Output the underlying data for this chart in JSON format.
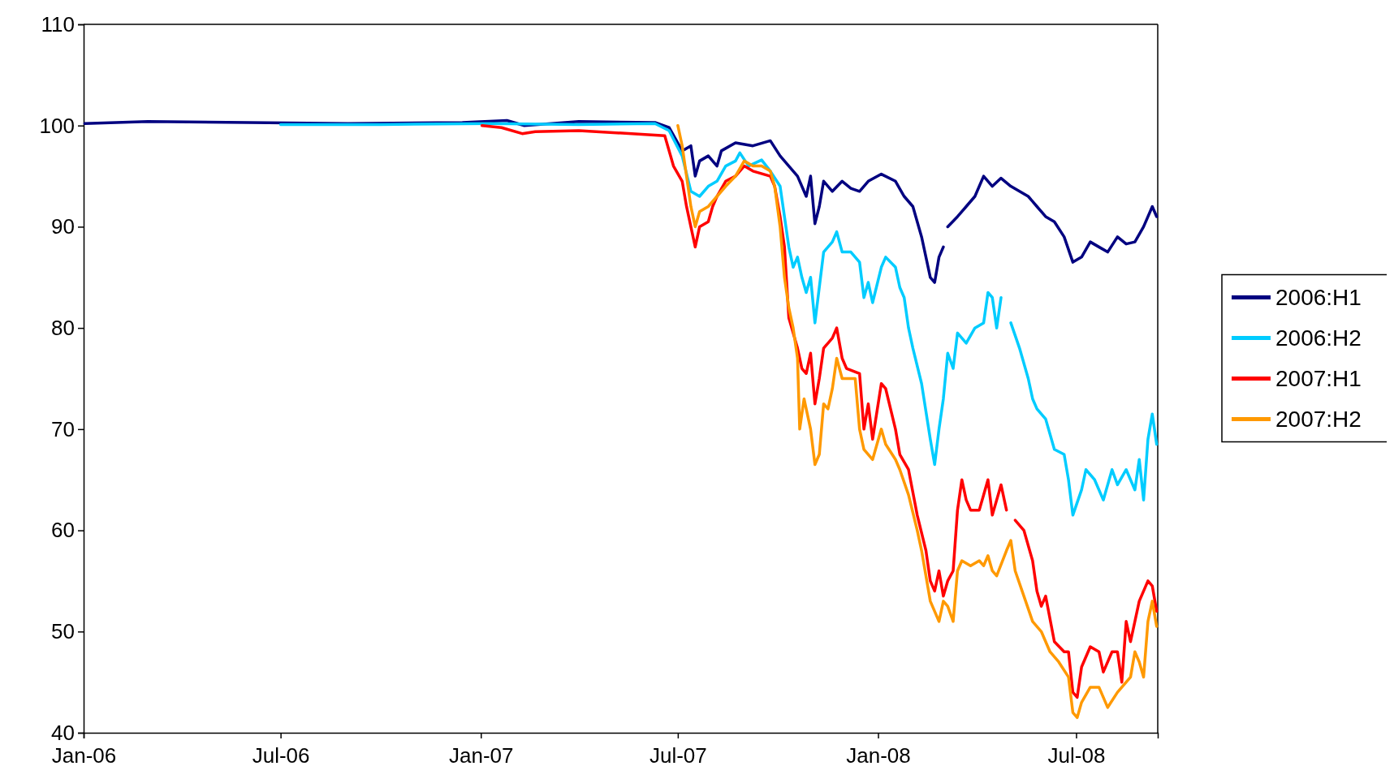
{
  "chart_data": {
    "type": "line",
    "xlim": [
      "2006-01-01",
      "2008-09-14"
    ],
    "ylim": [
      40,
      110
    ],
    "yticks": [
      40,
      50,
      60,
      70,
      80,
      90,
      100,
      110
    ],
    "xticks": [
      {
        "value": "2006-01-01",
        "label": "Jan-06"
      },
      {
        "value": "2006-07-01",
        "label": "Jul-06"
      },
      {
        "value": "2007-01-01",
        "label": "Jan-07"
      },
      {
        "value": "2007-07-01",
        "label": "Jul-07"
      },
      {
        "value": "2008-01-01",
        "label": "Jan-08"
      },
      {
        "value": "2008-07-01",
        "label": "Jul-08"
      }
    ],
    "grid": false,
    "legend": "right",
    "marker": "none",
    "line_style": "solid",
    "series": [
      {
        "name": "2006:H1",
        "color": "#000080",
        "x": [
          "2006-01-02",
          "2006-03-01",
          "2006-06-01",
          "2006-09-01",
          "2006-12-15",
          "2007-01-25",
          "2007-02-10",
          "2007-04-01",
          "2007-06-10",
          "2007-06-23",
          "2007-07-05",
          "2007-07-13",
          "2007-07-17",
          "2007-07-21",
          "2007-07-29",
          "2007-08-06",
          "2007-08-10",
          "2007-08-23",
          "2007-09-08",
          "2007-09-24",
          "2007-10-03",
          "2007-10-19",
          "2007-10-27",
          "2007-10-31",
          "2007-11-04",
          "2007-11-08",
          "2007-11-12",
          "2007-11-20",
          "2007-11-29",
          "2007-12-07",
          "2007-12-15",
          "2007-12-23",
          "2008-01-04",
          "2008-01-17",
          "2008-01-25",
          "2008-02-02",
          "2008-02-10",
          "2008-02-18",
          "2008-02-22",
          "2008-02-26",
          "2008-03-01",
          "2008-03-03",
          "2008-03-05",
          "2008-03-14",
          "2008-03-22",
          "2008-03-30",
          "2008-04-07",
          "2008-04-15",
          "2008-04-23",
          "2008-05-02",
          "2008-05-10",
          "2008-05-18",
          "2008-05-26",
          "2008-06-03",
          "2008-06-11",
          "2008-06-20",
          "2008-06-28",
          "2008-07-06",
          "2008-07-14",
          "2008-07-22",
          "2008-07-30",
          "2008-08-08",
          "2008-08-16",
          "2008-08-24",
          "2008-09-01",
          "2008-09-09",
          "2008-09-13"
        ],
        "values": [
          100.2,
          100.4,
          100.3,
          100.2,
          100.3,
          100.5,
          100,
          100.4,
          100.3,
          99.8,
          97.5,
          98,
          95,
          96.5,
          97,
          96,
          97.5,
          98.3,
          98,
          98.5,
          97,
          95,
          93,
          95,
          90.3,
          92,
          94.5,
          93.5,
          94.5,
          93.8,
          93.5,
          94.5,
          95.2,
          94.5,
          93,
          92,
          89,
          85,
          84.5,
          87,
          88,
          null,
          90,
          91,
          92,
          93,
          95,
          94,
          94.8,
          94,
          93.5,
          93,
          92,
          91,
          90.5,
          89,
          86.5,
          87,
          88.5,
          88,
          87.5,
          89,
          88.3,
          88.5,
          90,
          92,
          91
        ]
      },
      {
        "name": "2006:H2",
        "color": "#00ccff",
        "x": [
          "2006-07-01",
          "2006-10-01",
          "2007-01-10",
          "2007-04-01",
          "2007-06-10",
          "2007-06-23",
          "2007-07-05",
          "2007-07-13",
          "2007-07-21",
          "2007-07-29",
          "2007-08-06",
          "2007-08-14",
          "2007-08-23",
          "2007-08-27",
          "2007-09-04",
          "2007-09-16",
          "2007-09-24",
          "2007-10-03",
          "2007-10-11",
          "2007-10-15",
          "2007-10-19",
          "2007-10-23",
          "2007-10-27",
          "2007-10-31",
          "2007-11-04",
          "2007-11-08",
          "2007-11-12",
          "2007-11-20",
          "2007-11-24",
          "2007-11-29",
          "2007-12-07",
          "2007-12-15",
          "2007-12-19",
          "2007-12-23",
          "2007-12-27",
          "2008-01-04",
          "2008-01-08",
          "2008-01-17",
          "2008-01-21",
          "2008-01-25",
          "2008-01-29",
          "2008-02-02",
          "2008-02-10",
          "2008-02-18",
          "2008-02-22",
          "2008-02-26",
          "2008-03-01",
          "2008-03-05",
          "2008-03-10",
          "2008-03-14",
          "2008-03-22",
          "2008-03-30",
          "2008-04-07",
          "2008-04-11",
          "2008-04-15",
          "2008-04-19",
          "2008-04-23",
          "2008-04-26",
          "2008-05-02",
          "2008-05-10",
          "2008-05-18",
          "2008-05-22",
          "2008-05-26",
          "2008-06-03",
          "2008-06-11",
          "2008-06-20",
          "2008-06-24",
          "2008-06-28",
          "2008-07-06",
          "2008-07-10",
          "2008-07-18",
          "2008-07-26",
          "2008-08-03",
          "2008-08-08",
          "2008-08-16",
          "2008-08-24",
          "2008-08-28",
          "2008-09-01",
          "2008-09-05",
          "2008-09-09",
          "2008-09-13"
        ],
        "values": [
          100.1,
          100.1,
          100.2,
          100.1,
          100.2,
          99.5,
          97,
          93.5,
          93,
          94,
          94.5,
          96,
          96.5,
          97.3,
          96,
          96.6,
          95.5,
          94,
          88,
          86,
          87,
          85,
          83.5,
          85,
          80.5,
          84,
          87.5,
          88.5,
          89.5,
          87.5,
          87.5,
          86.5,
          83,
          84.5,
          82.5,
          86,
          87,
          86,
          84,
          83,
          80,
          78,
          74.5,
          69,
          66.5,
          70,
          73,
          77.5,
          76,
          79.5,
          78.5,
          80,
          80.5,
          83.5,
          83,
          80,
          83,
          null,
          80.5,
          78,
          75,
          73,
          72,
          71,
          68,
          67.5,
          65,
          61.5,
          64,
          66,
          65,
          63,
          66,
          64.5,
          66,
          64,
          67,
          63,
          69,
          71.5,
          68.5
        ]
      },
      {
        "name": "2007:H1",
        "color": "#ff0000",
        "x": [
          "2007-01-02",
          "2007-01-20",
          "2007-02-08",
          "2007-02-20",
          "2007-04-01",
          "2007-06-19",
          "2007-06-27",
          "2007-07-05",
          "2007-07-09",
          "2007-07-13",
          "2007-07-17",
          "2007-07-21",
          "2007-07-29",
          "2007-08-02",
          "2007-08-06",
          "2007-08-14",
          "2007-08-23",
          "2007-08-31",
          "2007-09-08",
          "2007-09-24",
          "2007-09-28",
          "2007-10-03",
          "2007-10-07",
          "2007-10-11",
          "2007-10-15",
          "2007-10-19",
          "2007-10-23",
          "2007-10-27",
          "2007-10-31",
          "2007-11-04",
          "2007-11-08",
          "2007-11-12",
          "2007-11-20",
          "2007-11-24",
          "2007-11-29",
          "2007-12-03",
          "2007-12-15",
          "2007-12-19",
          "2007-12-23",
          "2007-12-27",
          "2008-01-04",
          "2008-01-08",
          "2008-01-17",
          "2008-01-21",
          "2008-01-29",
          "2008-02-06",
          "2008-02-14",
          "2008-02-18",
          "2008-02-22",
          "2008-02-26",
          "2008-03-01",
          "2008-03-05",
          "2008-03-10",
          "2008-03-14",
          "2008-03-18",
          "2008-03-22",
          "2008-03-26",
          "2008-03-30",
          "2008-04-03",
          "2008-04-07",
          "2008-04-11",
          "2008-04-15",
          "2008-04-23",
          "2008-04-28",
          "2008-04-30",
          "2008-05-06",
          "2008-05-14",
          "2008-05-22",
          "2008-05-26",
          "2008-05-30",
          "2008-06-03",
          "2008-06-11",
          "2008-06-20",
          "2008-06-24",
          "2008-06-28",
          "2008-07-02",
          "2008-07-06",
          "2008-07-14",
          "2008-07-22",
          "2008-07-26",
          "2008-08-03",
          "2008-08-08",
          "2008-08-12",
          "2008-08-16",
          "2008-08-20",
          "2008-08-28",
          "2008-09-05",
          "2008-09-09",
          "2008-09-13"
        ],
        "values": [
          100,
          99.8,
          99.2,
          99.4,
          99.5,
          99,
          96,
          94.5,
          92,
          90,
          88,
          90,
          90.5,
          92,
          93,
          94.5,
          95,
          96,
          95.5,
          95,
          94,
          91,
          88,
          81,
          79.5,
          78,
          76,
          75.5,
          77.5,
          72.5,
          75,
          78,
          79,
          80,
          77,
          76,
          75.5,
          70,
          72.5,
          69,
          74.5,
          74,
          70,
          67.5,
          66,
          61.5,
          58,
          55,
          54,
          56,
          53.5,
          55,
          56,
          62,
          65,
          63,
          62,
          62,
          62,
          63.5,
          65,
          61.5,
          64.5,
          62,
          null,
          61,
          60,
          57,
          54,
          52.5,
          53.5,
          49,
          48,
          48,
          44,
          43.5,
          46.5,
          48.5,
          48,
          46,
          48,
          48,
          45,
          51,
          49,
          53,
          55,
          54.5,
          52
        ]
      },
      {
        "name": "2007:H2",
        "color": "#ff9900",
        "x": [
          "2007-07-01",
          "2007-07-05",
          "2007-07-09",
          "2007-07-13",
          "2007-07-17",
          "2007-07-21",
          "2007-07-29",
          "2007-08-06",
          "2007-08-14",
          "2007-08-23",
          "2007-08-31",
          "2007-09-08",
          "2007-09-16",
          "2007-09-24",
          "2007-09-28",
          "2007-10-03",
          "2007-10-07",
          "2007-10-11",
          "2007-10-15",
          "2007-10-19",
          "2007-10-21",
          "2007-10-25",
          "2007-10-31",
          "2007-11-04",
          "2007-11-08",
          "2007-11-12",
          "2007-11-16",
          "2007-11-20",
          "2007-11-24",
          "2007-11-29",
          "2007-12-11",
          "2007-12-15",
          "2007-12-19",
          "2007-12-27",
          "2008-01-04",
          "2008-01-08",
          "2008-01-17",
          "2008-01-21",
          "2008-01-29",
          "2008-02-06",
          "2008-02-10",
          "2008-02-18",
          "2008-02-22",
          "2008-02-26",
          "2008-03-01",
          "2008-03-05",
          "2008-03-10",
          "2008-03-14",
          "2008-03-18",
          "2008-03-26",
          "2008-04-03",
          "2008-04-07",
          "2008-04-11",
          "2008-04-15",
          "2008-04-19",
          "2008-04-28",
          "2008-05-02",
          "2008-05-06",
          "2008-05-14",
          "2008-05-22",
          "2008-05-30",
          "2008-06-07",
          "2008-06-15",
          "2008-06-24",
          "2008-06-28",
          "2008-07-02",
          "2008-07-06",
          "2008-07-14",
          "2008-07-22",
          "2008-07-30",
          "2008-08-08",
          "2008-08-16",
          "2008-08-20",
          "2008-08-24",
          "2008-08-28",
          "2008-09-01",
          "2008-09-05",
          "2008-09-09",
          "2008-09-13"
        ],
        "values": [
          100,
          98,
          95,
          92,
          90,
          91.5,
          92,
          93,
          94,
          95,
          96.5,
          96,
          96,
          95.5,
          94,
          90,
          85,
          82,
          80,
          77,
          70,
          73,
          70,
          66.5,
          67.5,
          72.5,
          72,
          74,
          77,
          75,
          75,
          70,
          68,
          67,
          70,
          68.5,
          67,
          66,
          63.5,
          60,
          58,
          53,
          52,
          51,
          53,
          52.5,
          51,
          56,
          57,
          56.5,
          57,
          56.5,
          57.5,
          56,
          55.5,
          58,
          59,
          56,
          53.5,
          51,
          50,
          48,
          47,
          45.5,
          42,
          41.5,
          43,
          44.5,
          44.5,
          42.5,
          44,
          45,
          45.5,
          48,
          47,
          45.5,
          51,
          53,
          50.5
        ]
      }
    ]
  }
}
